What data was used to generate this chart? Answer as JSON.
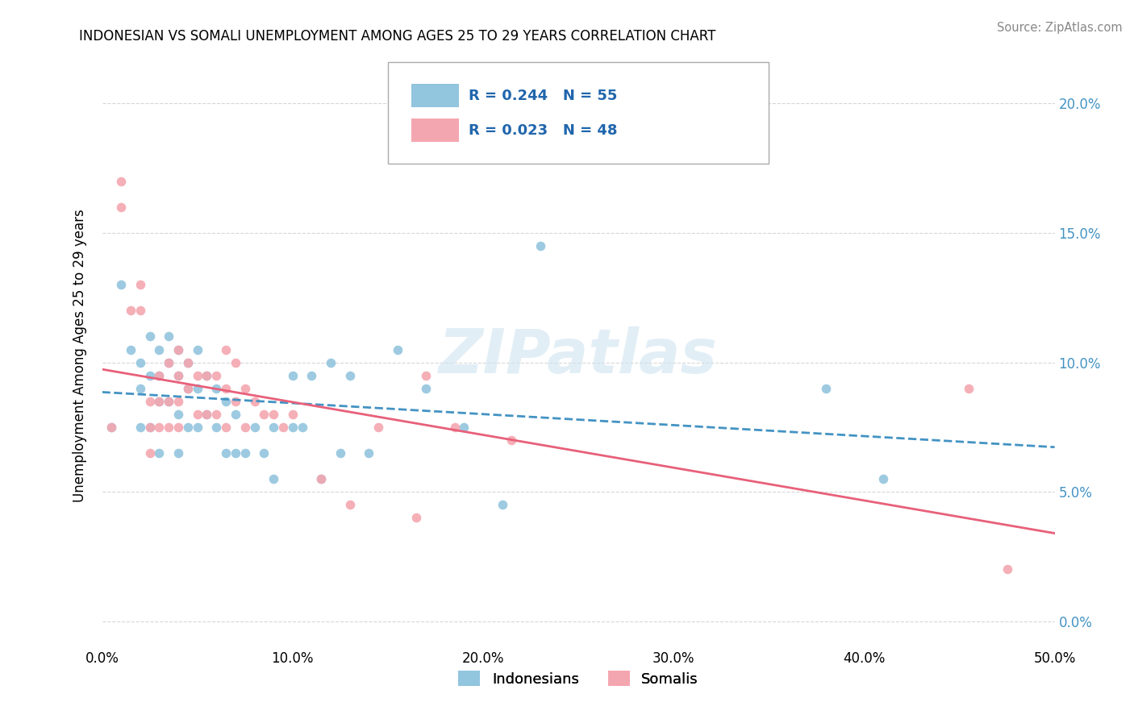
{
  "title": "INDONESIAN VS SOMALI UNEMPLOYMENT AMONG AGES 25 TO 29 YEARS CORRELATION CHART",
  "source": "Source: ZipAtlas.com",
  "ylabel": "Unemployment Among Ages 25 to 29 years",
  "xlim": [
    0.0,
    0.5
  ],
  "ylim": [
    -0.01,
    0.215
  ],
  "xticks": [
    0.0,
    0.1,
    0.2,
    0.3,
    0.4,
    0.5
  ],
  "yticks": [
    0.0,
    0.05,
    0.1,
    0.15,
    0.2
  ],
  "xtick_labels": [
    "0.0%",
    "10.0%",
    "20.0%",
    "30.0%",
    "40.0%",
    "50.0%"
  ],
  "ytick_labels": [
    "0.0%",
    "5.0%",
    "10.0%",
    "15.0%",
    "20.0%"
  ],
  "indonesian_color": "#92c5de",
  "somali_color": "#f4a6b0",
  "trend_indonesian_color": "#4393c3",
  "trend_somali_color": "#e8607a",
  "legend_indonesian_label": "Indonesians",
  "legend_somali_label": "Somalis",
  "R_indonesian": 0.244,
  "N_indonesian": 55,
  "R_somali": 0.023,
  "N_somali": 48,
  "watermark": "ZIPatlas",
  "indonesian_x": [
    0.005,
    0.01,
    0.015,
    0.02,
    0.02,
    0.02,
    0.025,
    0.025,
    0.025,
    0.03,
    0.03,
    0.03,
    0.03,
    0.035,
    0.035,
    0.035,
    0.04,
    0.04,
    0.04,
    0.04,
    0.045,
    0.045,
    0.045,
    0.05,
    0.05,
    0.05,
    0.055,
    0.055,
    0.06,
    0.06,
    0.065,
    0.065,
    0.07,
    0.07,
    0.075,
    0.08,
    0.085,
    0.09,
    0.09,
    0.1,
    0.1,
    0.105,
    0.11,
    0.115,
    0.12,
    0.125,
    0.13,
    0.14,
    0.155,
    0.17,
    0.19,
    0.21,
    0.23,
    0.38,
    0.41
  ],
  "indonesian_y": [
    0.075,
    0.13,
    0.105,
    0.1,
    0.09,
    0.075,
    0.11,
    0.095,
    0.075,
    0.105,
    0.095,
    0.085,
    0.065,
    0.11,
    0.1,
    0.085,
    0.105,
    0.095,
    0.08,
    0.065,
    0.1,
    0.09,
    0.075,
    0.105,
    0.09,
    0.075,
    0.095,
    0.08,
    0.09,
    0.075,
    0.085,
    0.065,
    0.08,
    0.065,
    0.065,
    0.075,
    0.065,
    0.075,
    0.055,
    0.095,
    0.075,
    0.075,
    0.095,
    0.055,
    0.1,
    0.065,
    0.095,
    0.065,
    0.105,
    0.09,
    0.075,
    0.045,
    0.145,
    0.09,
    0.055
  ],
  "somali_x": [
    0.005,
    0.01,
    0.01,
    0.015,
    0.02,
    0.02,
    0.025,
    0.025,
    0.025,
    0.03,
    0.03,
    0.03,
    0.035,
    0.035,
    0.035,
    0.04,
    0.04,
    0.04,
    0.04,
    0.045,
    0.045,
    0.05,
    0.05,
    0.055,
    0.055,
    0.06,
    0.06,
    0.065,
    0.065,
    0.065,
    0.07,
    0.07,
    0.075,
    0.075,
    0.08,
    0.085,
    0.09,
    0.095,
    0.1,
    0.115,
    0.13,
    0.145,
    0.165,
    0.17,
    0.185,
    0.215,
    0.455,
    0.475
  ],
  "somali_y": [
    0.075,
    0.17,
    0.16,
    0.12,
    0.13,
    0.12,
    0.085,
    0.075,
    0.065,
    0.095,
    0.085,
    0.075,
    0.1,
    0.085,
    0.075,
    0.105,
    0.095,
    0.085,
    0.075,
    0.1,
    0.09,
    0.095,
    0.08,
    0.095,
    0.08,
    0.095,
    0.08,
    0.105,
    0.09,
    0.075,
    0.1,
    0.085,
    0.09,
    0.075,
    0.085,
    0.08,
    0.08,
    0.075,
    0.08,
    0.055,
    0.045,
    0.075,
    0.04,
    0.095,
    0.075,
    0.07,
    0.09,
    0.02
  ]
}
